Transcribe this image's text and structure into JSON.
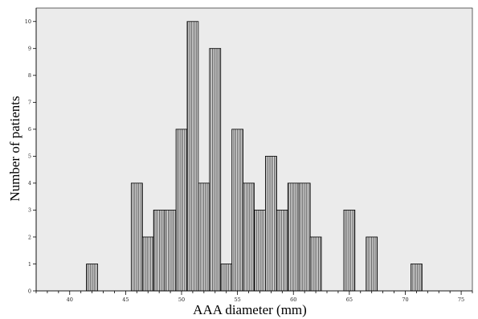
{
  "chart_data": {
    "type": "bar",
    "xlabel": "AAA diameter (mm)",
    "ylabel": "Number of patients",
    "xlim": [
      37,
      76
    ],
    "ylim": [
      0,
      10.5
    ],
    "bin_width": 1,
    "x_ticks": [
      40,
      45,
      50,
      55,
      60,
      65,
      70,
      75
    ],
    "y_ticks": [
      0,
      1,
      2,
      3,
      4,
      5,
      6,
      7,
      8,
      9,
      10
    ],
    "bins": [
      {
        "x": 42,
        "count": 1
      },
      {
        "x": 46,
        "count": 4
      },
      {
        "x": 47,
        "count": 2
      },
      {
        "x": 48,
        "count": 3
      },
      {
        "x": 49,
        "count": 3
      },
      {
        "x": 50,
        "count": 6
      },
      {
        "x": 51,
        "count": 10
      },
      {
        "x": 52,
        "count": 4
      },
      {
        "x": 53,
        "count": 9
      },
      {
        "x": 54,
        "count": 1
      },
      {
        "x": 55,
        "count": 6
      },
      {
        "x": 56,
        "count": 4
      },
      {
        "x": 57,
        "count": 3
      },
      {
        "x": 58,
        "count": 5
      },
      {
        "x": 59,
        "count": 3
      },
      {
        "x": 60,
        "count": 4
      },
      {
        "x": 61,
        "count": 4
      },
      {
        "x": 62,
        "count": 2
      },
      {
        "x": 65,
        "count": 3
      },
      {
        "x": 67,
        "count": 2
      },
      {
        "x": 71,
        "count": 1
      }
    ],
    "grid": false,
    "colors": {
      "plot_background": "#ebebeb",
      "bar_fill": "#ffffff",
      "bar_hatch": "#555555",
      "bar_edge": "#000000"
    }
  }
}
